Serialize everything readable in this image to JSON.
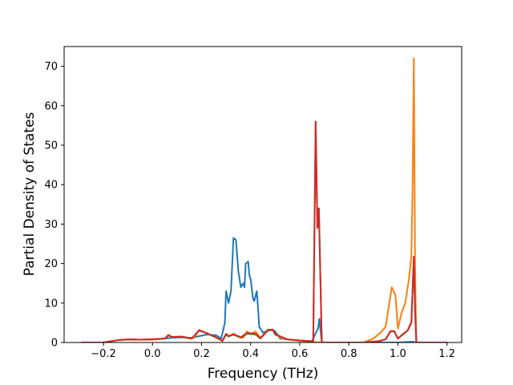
{
  "chart_data": {
    "type": "line",
    "title": "",
    "xlabel": "Frequency (THz)",
    "ylabel": "Partial Density of States",
    "xlim": [
      -0.36,
      1.26
    ],
    "ylim": [
      0,
      75
    ],
    "xticks": [
      -0.2,
      0.0,
      0.2,
      0.4,
      0.6,
      0.8,
      1.0,
      1.2
    ],
    "xtick_labels": [
      "−0.2",
      "0.0",
      "0.2",
      "0.4",
      "0.6",
      "0.8",
      "1.0",
      "1.2"
    ],
    "yticks": [
      0,
      10,
      20,
      30,
      40,
      50,
      60,
      70
    ],
    "ytick_labels": [
      "0",
      "10",
      "20",
      "30",
      "40",
      "50",
      "60",
      "70"
    ],
    "grid": false,
    "legend": "none",
    "series": [
      {
        "color": "#1f77b4",
        "points": [
          [
            -0.29,
            0
          ],
          [
            -0.2,
            0
          ],
          [
            -0.14,
            0.6
          ],
          [
            -0.1,
            0.8
          ],
          [
            -0.05,
            0.7
          ],
          [
            0,
            0.8
          ],
          [
            0.05,
            1.0
          ],
          [
            0.08,
            1.2
          ],
          [
            0.12,
            1.3
          ],
          [
            0.16,
            1.2
          ],
          [
            0.19,
            1.6
          ],
          [
            0.22,
            2.0
          ],
          [
            0.26,
            1.8
          ],
          [
            0.28,
            1.0
          ],
          [
            0.295,
            5
          ],
          [
            0.3,
            13
          ],
          [
            0.31,
            10
          ],
          [
            0.32,
            13
          ],
          [
            0.33,
            26.5
          ],
          [
            0.34,
            26
          ],
          [
            0.35,
            18
          ],
          [
            0.36,
            14
          ],
          [
            0.37,
            15
          ],
          [
            0.375,
            14
          ],
          [
            0.38,
            20
          ],
          [
            0.39,
            20.5
          ],
          [
            0.395,
            17
          ],
          [
            0.4,
            16
          ],
          [
            0.41,
            11
          ],
          [
            0.415,
            10.5
          ],
          [
            0.425,
            13
          ],
          [
            0.43,
            9
          ],
          [
            0.435,
            4
          ],
          [
            0.45,
            2.5
          ],
          [
            0.47,
            3.0
          ],
          [
            0.49,
            3.2
          ],
          [
            0.5,
            2.8
          ],
          [
            0.52,
            1.0
          ],
          [
            0.56,
            0.7
          ],
          [
            0.6,
            0.5
          ],
          [
            0.65,
            0.3
          ],
          [
            0.67,
            3.0
          ],
          [
            0.675,
            3.5
          ],
          [
            0.68,
            6.0
          ],
          [
            0.69,
            0
          ],
          [
            0.75,
            0
          ],
          [
            1.0,
            0
          ],
          [
            1.06,
            0.2
          ],
          [
            1.07,
            0
          ],
          [
            1.2,
            0
          ]
        ]
      },
      {
        "color": "#ff7f0e",
        "points": [
          [
            -0.29,
            0
          ],
          [
            -0.2,
            0
          ],
          [
            -0.15,
            0.5
          ],
          [
            -0.1,
            0.8
          ],
          [
            -0.05,
            0.7
          ],
          [
            0,
            0.7
          ],
          [
            0.05,
            1.0
          ],
          [
            0.065,
            2.0
          ],
          [
            0.08,
            1.4
          ],
          [
            0.12,
            1.5
          ],
          [
            0.15,
            1.0
          ],
          [
            0.17,
            1.2
          ],
          [
            0.19,
            3.2
          ],
          [
            0.21,
            2.6
          ],
          [
            0.24,
            1.8
          ],
          [
            0.27,
            1.0
          ],
          [
            0.285,
            0.4
          ],
          [
            0.3,
            2.2
          ],
          [
            0.31,
            1.6
          ],
          [
            0.33,
            2.2
          ],
          [
            0.35,
            1.5
          ],
          [
            0.37,
            1.2
          ],
          [
            0.385,
            2.8
          ],
          [
            0.4,
            2.2
          ],
          [
            0.42,
            2.8
          ],
          [
            0.44,
            1.2
          ],
          [
            0.46,
            2.5
          ],
          [
            0.47,
            3.3
          ],
          [
            0.49,
            3.2
          ],
          [
            0.5,
            2.0
          ],
          [
            0.53,
            1.0
          ],
          [
            0.57,
            0.6
          ],
          [
            0.62,
            0.3
          ],
          [
            0.66,
            0.1
          ],
          [
            0.69,
            0
          ],
          [
            0.86,
            0
          ],
          [
            0.9,
            1.0
          ],
          [
            0.93,
            2.5
          ],
          [
            0.95,
            4.0
          ],
          [
            0.965,
            10
          ],
          [
            0.975,
            14
          ],
          [
            0.99,
            12
          ],
          [
            1.0,
            3.5
          ],
          [
            1.015,
            7.5
          ],
          [
            1.03,
            10
          ],
          [
            1.045,
            16
          ],
          [
            1.055,
            22
          ],
          [
            1.06,
            40
          ],
          [
            1.065,
            72
          ],
          [
            1.07,
            20
          ],
          [
            1.075,
            0
          ],
          [
            1.2,
            0
          ]
        ]
      },
      {
        "color": "#2ca02c",
        "points": [
          [
            -0.29,
            0
          ],
          [
            -0.2,
            0
          ],
          [
            -0.14,
            0.6
          ],
          [
            -0.1,
            0.7
          ],
          [
            -0.05,
            0.7
          ],
          [
            0,
            0.8
          ],
          [
            0.05,
            1.0
          ],
          [
            0.065,
            1.8
          ],
          [
            0.08,
            1.4
          ],
          [
            0.12,
            1.4
          ],
          [
            0.16,
            1.0
          ],
          [
            0.19,
            3.0
          ],
          [
            0.22,
            2.4
          ],
          [
            0.25,
            1.5
          ],
          [
            0.285,
            0.4
          ],
          [
            0.3,
            2.0
          ],
          [
            0.31,
            1.5
          ],
          [
            0.33,
            2.0
          ],
          [
            0.36,
            1.2
          ],
          [
            0.385,
            2.2
          ],
          [
            0.42,
            2.0
          ],
          [
            0.44,
            1.0
          ],
          [
            0.47,
            3.0
          ],
          [
            0.49,
            3.2
          ],
          [
            0.5,
            2.0
          ],
          [
            0.55,
            0.8
          ],
          [
            0.6,
            0.5
          ],
          [
            0.655,
            0.3
          ],
          [
            0.665,
            56
          ],
          [
            0.672,
            29
          ],
          [
            0.678,
            34
          ],
          [
            0.69,
            0
          ],
          [
            0.86,
            0
          ],
          [
            0.92,
            0.3
          ],
          [
            0.95,
            0.8
          ],
          [
            0.97,
            2.8
          ],
          [
            0.985,
            2.8
          ],
          [
            1.0,
            1.0
          ],
          [
            1.02,
            2.0
          ],
          [
            1.04,
            3.0
          ],
          [
            1.055,
            5.0
          ],
          [
            1.065,
            21.5
          ],
          [
            1.07,
            8
          ],
          [
            1.075,
            0
          ],
          [
            1.2,
            0
          ]
        ]
      },
      {
        "color": "#d62728",
        "points": [
          [
            -0.29,
            0
          ],
          [
            -0.2,
            0
          ],
          [
            -0.14,
            0.6
          ],
          [
            -0.1,
            0.8
          ],
          [
            -0.05,
            0.7
          ],
          [
            0,
            0.8
          ],
          [
            0.05,
            1.0
          ],
          [
            0.065,
            1.8
          ],
          [
            0.08,
            1.4
          ],
          [
            0.12,
            1.5
          ],
          [
            0.16,
            1.0
          ],
          [
            0.19,
            3.1
          ],
          [
            0.22,
            2.4
          ],
          [
            0.25,
            1.6
          ],
          [
            0.285,
            0.4
          ],
          [
            0.3,
            2.2
          ],
          [
            0.31,
            1.6
          ],
          [
            0.33,
            2.1
          ],
          [
            0.36,
            1.3
          ],
          [
            0.385,
            2.4
          ],
          [
            0.42,
            2.2
          ],
          [
            0.44,
            1.1
          ],
          [
            0.47,
            3.1
          ],
          [
            0.49,
            3.3
          ],
          [
            0.5,
            2.1
          ],
          [
            0.55,
            0.8
          ],
          [
            0.6,
            0.5
          ],
          [
            0.655,
            0.3
          ],
          [
            0.665,
            56
          ],
          [
            0.672,
            29
          ],
          [
            0.678,
            34
          ],
          [
            0.69,
            0
          ],
          [
            0.86,
            0
          ],
          [
            0.92,
            0.3
          ],
          [
            0.95,
            0.8
          ],
          [
            0.97,
            2.9
          ],
          [
            0.985,
            2.9
          ],
          [
            1.0,
            1.0
          ],
          [
            1.02,
            2.1
          ],
          [
            1.04,
            3.1
          ],
          [
            1.055,
            5.2
          ],
          [
            1.065,
            21.8
          ],
          [
            1.07,
            8
          ],
          [
            1.075,
            0
          ],
          [
            1.2,
            0
          ]
        ]
      }
    ]
  }
}
